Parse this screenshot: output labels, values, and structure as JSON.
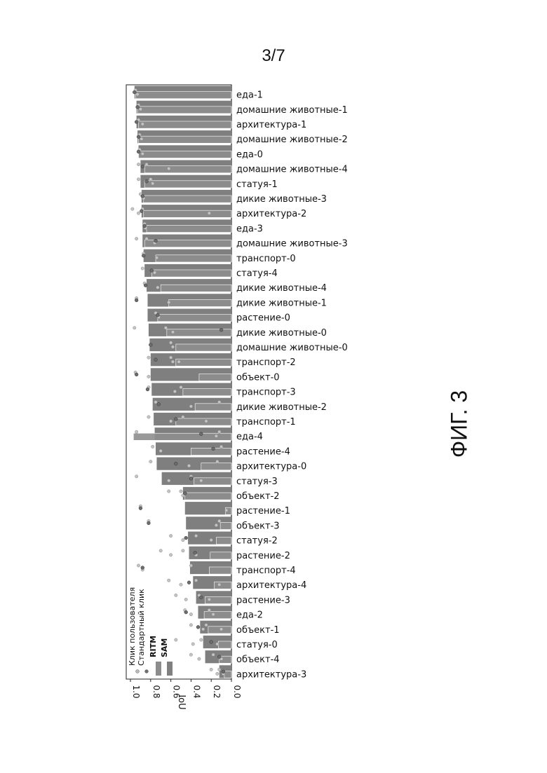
{
  "page": {
    "number": "3/7",
    "figure_label": "ФИГ. 3"
  },
  "chart_data": {
    "type": "bar",
    "orientation": "rotated-90-counterclockwise",
    "ylabel": "IoU",
    "ylim": [
      0,
      1.0
    ],
    "yticks": [
      "0.0",
      "0.2",
      "0.4",
      "0.6",
      "0.8",
      "1.0"
    ],
    "grid": false,
    "legend": {
      "placement": "bottom-left",
      "entries": [
        {
          "label": "Клик пользователя",
          "kind": "marker",
          "color": "#bdbdbd"
        },
        {
          "label": "Стандартный клик",
          "kind": "marker",
          "color": "#6f6f6f"
        },
        {
          "label": "RITM",
          "kind": "bar",
          "color": "#8c8c8c"
        },
        {
          "label": "SAM",
          "kind": "bar",
          "color": "#808080"
        }
      ]
    },
    "colors": {
      "sam": "#7f7f7f",
      "ritm": "#8e8e8e",
      "user_click": "#c4c4c4",
      "standard_click": "#6d6d6d"
    },
    "categories": [
      "еда-1",
      "домашние животные-1",
      "архитектура-1",
      "домашние животные-2",
      "еда-0",
      "домашние животные-4",
      "статуя-1",
      "дикие животные-3",
      "архитектура-2",
      "еда-3",
      "домашние животные-3",
      "транспорт-0",
      "статуя-4",
      "дикие животные-4",
      "дикие животные-1",
      "растение-0",
      "дикие животные-0",
      "домашние животные-0",
      "транспорт-2",
      "объект-0",
      "транспорт-3",
      "дикие животные-2",
      "транспорт-1",
      "еда-4",
      "растение-4",
      "архитектура-0",
      "статуя-3",
      "объект-2",
      "растение-1",
      "объект-3",
      "статуя-2",
      "растение-2",
      "транспорт-4",
      "архитектура-4",
      "растение-3",
      "еда-2",
      "объект-1",
      "статуя-0",
      "объект-4",
      "архитектура-3"
    ],
    "series": [
      {
        "name": "SAM",
        "values": [
          0.96,
          0.94,
          0.94,
          0.93,
          0.92,
          0.9,
          0.9,
          0.89,
          0.89,
          0.88,
          0.88,
          0.87,
          0.86,
          0.84,
          0.83,
          0.83,
          0.82,
          0.81,
          0.8,
          0.8,
          0.79,
          0.78,
          0.77,
          0.76,
          0.75,
          0.74,
          0.69,
          0.48,
          0.46,
          0.45,
          0.43,
          0.42,
          0.41,
          0.38,
          0.35,
          0.33,
          0.31,
          0.28,
          0.26,
          0.12
        ]
      },
      {
        "name": "RITM",
        "values": [
          0.95,
          0.93,
          0.92,
          0.92,
          0.92,
          0.86,
          0.86,
          0.87,
          0.87,
          0.84,
          0.86,
          0.75,
          0.79,
          0.7,
          0.62,
          0.73,
          0.64,
          0.55,
          0.55,
          0.32,
          0.48,
          0.36,
          0.55,
          0.97,
          0.4,
          0.3,
          0.37,
          0.46,
          0.06,
          0.11,
          0.15,
          0.21,
          0.22,
          0.17,
          0.26,
          0.27,
          0.23,
          0.13,
          0.12,
          0.07
        ]
      }
    ],
    "markers": {
      "user_click_values": [
        [
          0.95,
          0.93
        ],
        [
          0.92,
          0.9
        ],
        [
          0.92,
          0.88
        ],
        [
          0.91,
          0.89
        ],
        [
          0.91,
          0.88
        ],
        [
          0.92,
          0.62,
          0.84
        ],
        [
          0.92,
          0.78,
          0.8
        ],
        [
          0.9,
          0.87
        ],
        [
          0.98,
          0.92,
          0.88,
          0.22
        ],
        [
          0.86,
          0.85
        ],
        [
          0.94,
          0.76,
          0.84
        ],
        [
          0.87,
          0.74
        ],
        [
          0.88,
          0.76
        ],
        [
          0.86,
          0.73
        ],
        [
          0.94,
          0.62
        ],
        [
          0.75,
          0.72
        ],
        [
          0.65,
          0.58,
          0.96
        ],
        [
          0.6,
          0.58
        ],
        [
          0.82,
          0.58,
          0.6,
          0.52
        ],
        [
          0.95,
          0.82
        ],
        [
          0.82,
          0.56,
          0.5
        ],
        [
          0.75,
          0.4,
          0.12
        ],
        [
          0.82,
          0.6,
          0.48,
          0.25
        ],
        [
          0.94,
          0.15,
          0.12
        ],
        [
          0.78,
          0.7,
          0.1
        ],
        [
          0.8,
          0.42,
          0.14
        ],
        [
          0.94,
          0.62,
          0.4,
          0.3
        ],
        [
          0.5,
          0.48,
          0.62
        ],
        [
          0.9,
          0.05
        ],
        [
          0.82,
          0.15,
          0.12
        ],
        [
          0.6,
          0.48,
          0.35,
          0.2
        ],
        [
          0.7,
          0.6,
          0.48,
          0.35
        ],
        [
          0.92,
          0.88,
          0.4
        ],
        [
          0.62,
          0.5,
          0.35,
          0.12
        ],
        [
          0.55,
          0.45,
          0.32,
          0.22
        ],
        [
          0.46,
          0.4,
          0.22,
          0.18
        ],
        [
          0.4,
          0.28,
          0.25,
          0.1
        ],
        [
          0.55,
          0.38,
          0.3,
          0.14
        ],
        [
          0.4,
          0.32,
          0.18,
          0.1
        ],
        [
          0.2,
          0.14,
          0.12,
          0.08
        ]
      ],
      "standard_click_values": [
        0.96,
        0.93,
        0.94,
        0.92,
        0.92,
        0.88,
        0.84,
        0.88,
        0.89,
        0.86,
        0.75,
        0.87,
        0.79,
        0.85,
        0.94,
        0.73,
        0.1,
        0.8,
        0.75,
        0.94,
        0.83,
        0.72,
        0.55,
        0.3,
        0.18,
        0.55,
        0.4,
        0.46,
        0.9,
        0.82,
        0.45,
        0.36,
        0.88,
        0.42,
        0.3,
        0.45,
        0.33,
        0.2,
        0.12,
        0.08
      ]
    }
  }
}
